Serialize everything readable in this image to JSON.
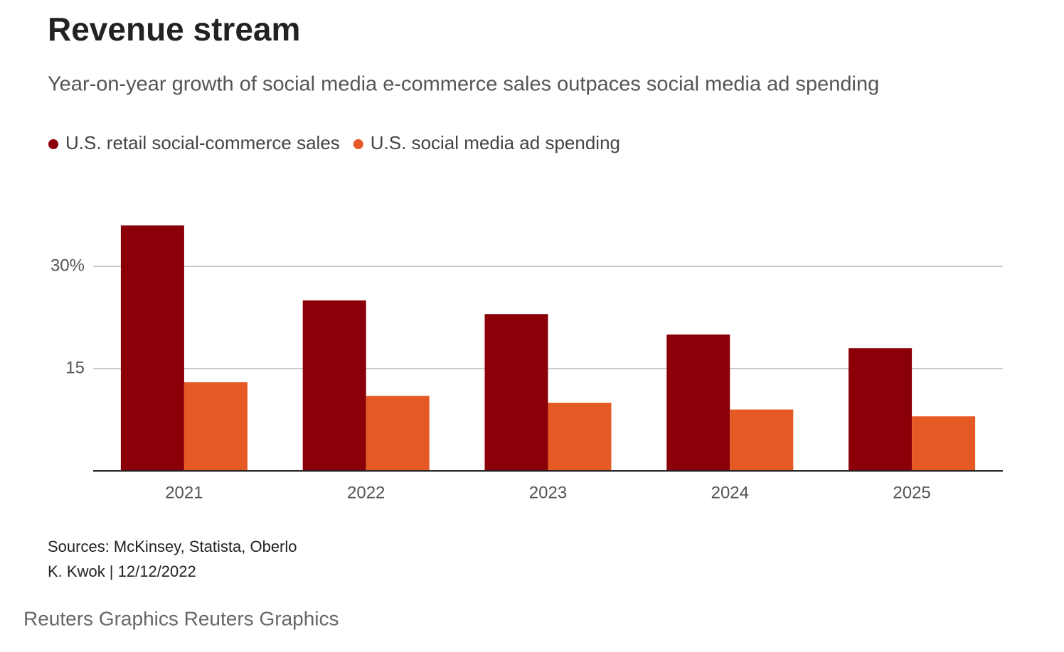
{
  "chart_data": {
    "type": "bar",
    "title": "Revenue stream",
    "subtitle": "Year-on-year growth of social media e-commerce sales outpaces social media ad spending",
    "categories": [
      "2021",
      "2022",
      "2023",
      "2024",
      "2025"
    ],
    "series": [
      {
        "name": "U.S. retail social-commerce sales",
        "color": "#8b0008",
        "values": [
          36,
          25,
          23,
          20,
          18
        ]
      },
      {
        "name": "U.S. social media ad spending",
        "color": "#e55a24",
        "values": [
          13,
          11,
          10,
          9,
          8
        ]
      }
    ],
    "ylim": [
      0,
      37
    ],
    "yticks": [
      15,
      {
        "value": 30,
        "label": "30%"
      }
    ],
    "grid": true,
    "legend": "top-left",
    "source": "Sources: McKinsey, Statista, Oberlo",
    "byline": "K. Kwok | 12/12/2022",
    "credit": "Reuters Graphics Reuters Graphics"
  }
}
